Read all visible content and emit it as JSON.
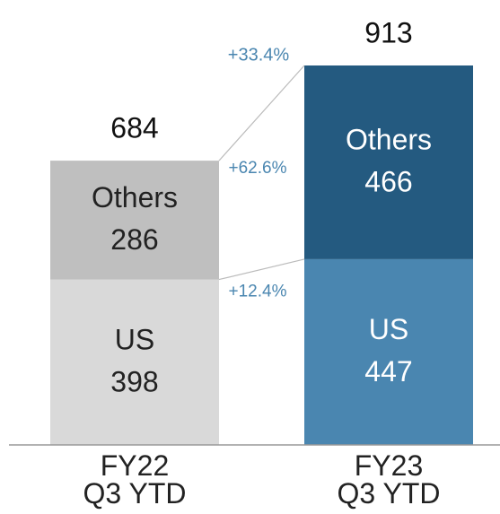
{
  "chart_data": {
    "type": "stacked_bar",
    "categories": [
      "FY22 Q3 YTD",
      "FY23 Q3 YTD"
    ],
    "series": [
      {
        "name": "US",
        "values": [
          398,
          447
        ],
        "colors": [
          "#d9d9d9",
          "#4a86b0"
        ]
      },
      {
        "name": "Others",
        "values": [
          286,
          466
        ],
        "colors": [
          "#bfbfbf",
          "#245a80"
        ]
      }
    ],
    "label_colors": [
      "#222222",
      "#ffffff"
    ],
    "totals": [
      684,
      913
    ],
    "annotations": [
      "+33.4%",
      "+62.6%",
      "+12.4%"
    ],
    "annotation_color": "#4a86b0"
  }
}
